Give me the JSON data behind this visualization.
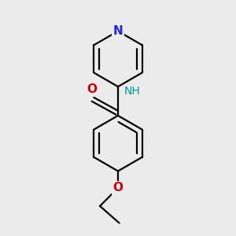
{
  "background_color": "#ebebeb",
  "bond_color": "#000000",
  "bond_width": 1.6,
  "atom_colors": {
    "N_pyridine": "#2222dd",
    "N_amide": "#009999",
    "O_carbonyl": "#cc0000",
    "O_ether": "#cc0000"
  },
  "font_size_N": 11,
  "font_size_O": 11,
  "font_size_NH": 10,
  "figsize": [
    3.0,
    3.0
  ],
  "dpi": 100,
  "xlim": [
    0.05,
    0.95
  ],
  "ylim": [
    0.02,
    0.98
  ]
}
